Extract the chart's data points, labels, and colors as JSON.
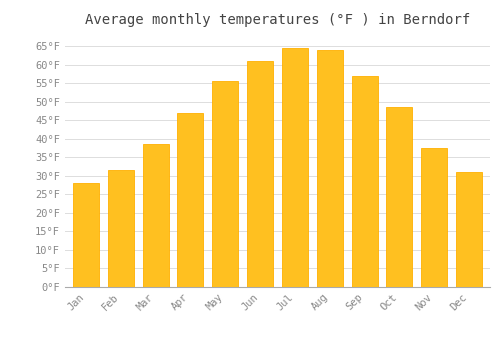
{
  "title": "Average monthly temperatures (°F ) in Berndorf",
  "months": [
    "Jan",
    "Feb",
    "Mar",
    "Apr",
    "May",
    "Jun",
    "Jul",
    "Aug",
    "Sep",
    "Oct",
    "Nov",
    "Dec"
  ],
  "values": [
    28,
    31.5,
    38.5,
    47,
    55.5,
    61,
    64.5,
    64,
    57,
    48.5,
    37.5,
    31
  ],
  "bar_color": "#FFC020",
  "bar_edge_color": "#FFB000",
  "background_color": "#FFFFFF",
  "grid_color": "#DDDDDD",
  "ylim": [
    0,
    68
  ],
  "yticks": [
    0,
    5,
    10,
    15,
    20,
    25,
    30,
    35,
    40,
    45,
    50,
    55,
    60,
    65
  ],
  "title_fontsize": 10,
  "tick_fontsize": 7.5,
  "title_color": "#444444",
  "tick_color": "#888888",
  "font_family": "monospace"
}
